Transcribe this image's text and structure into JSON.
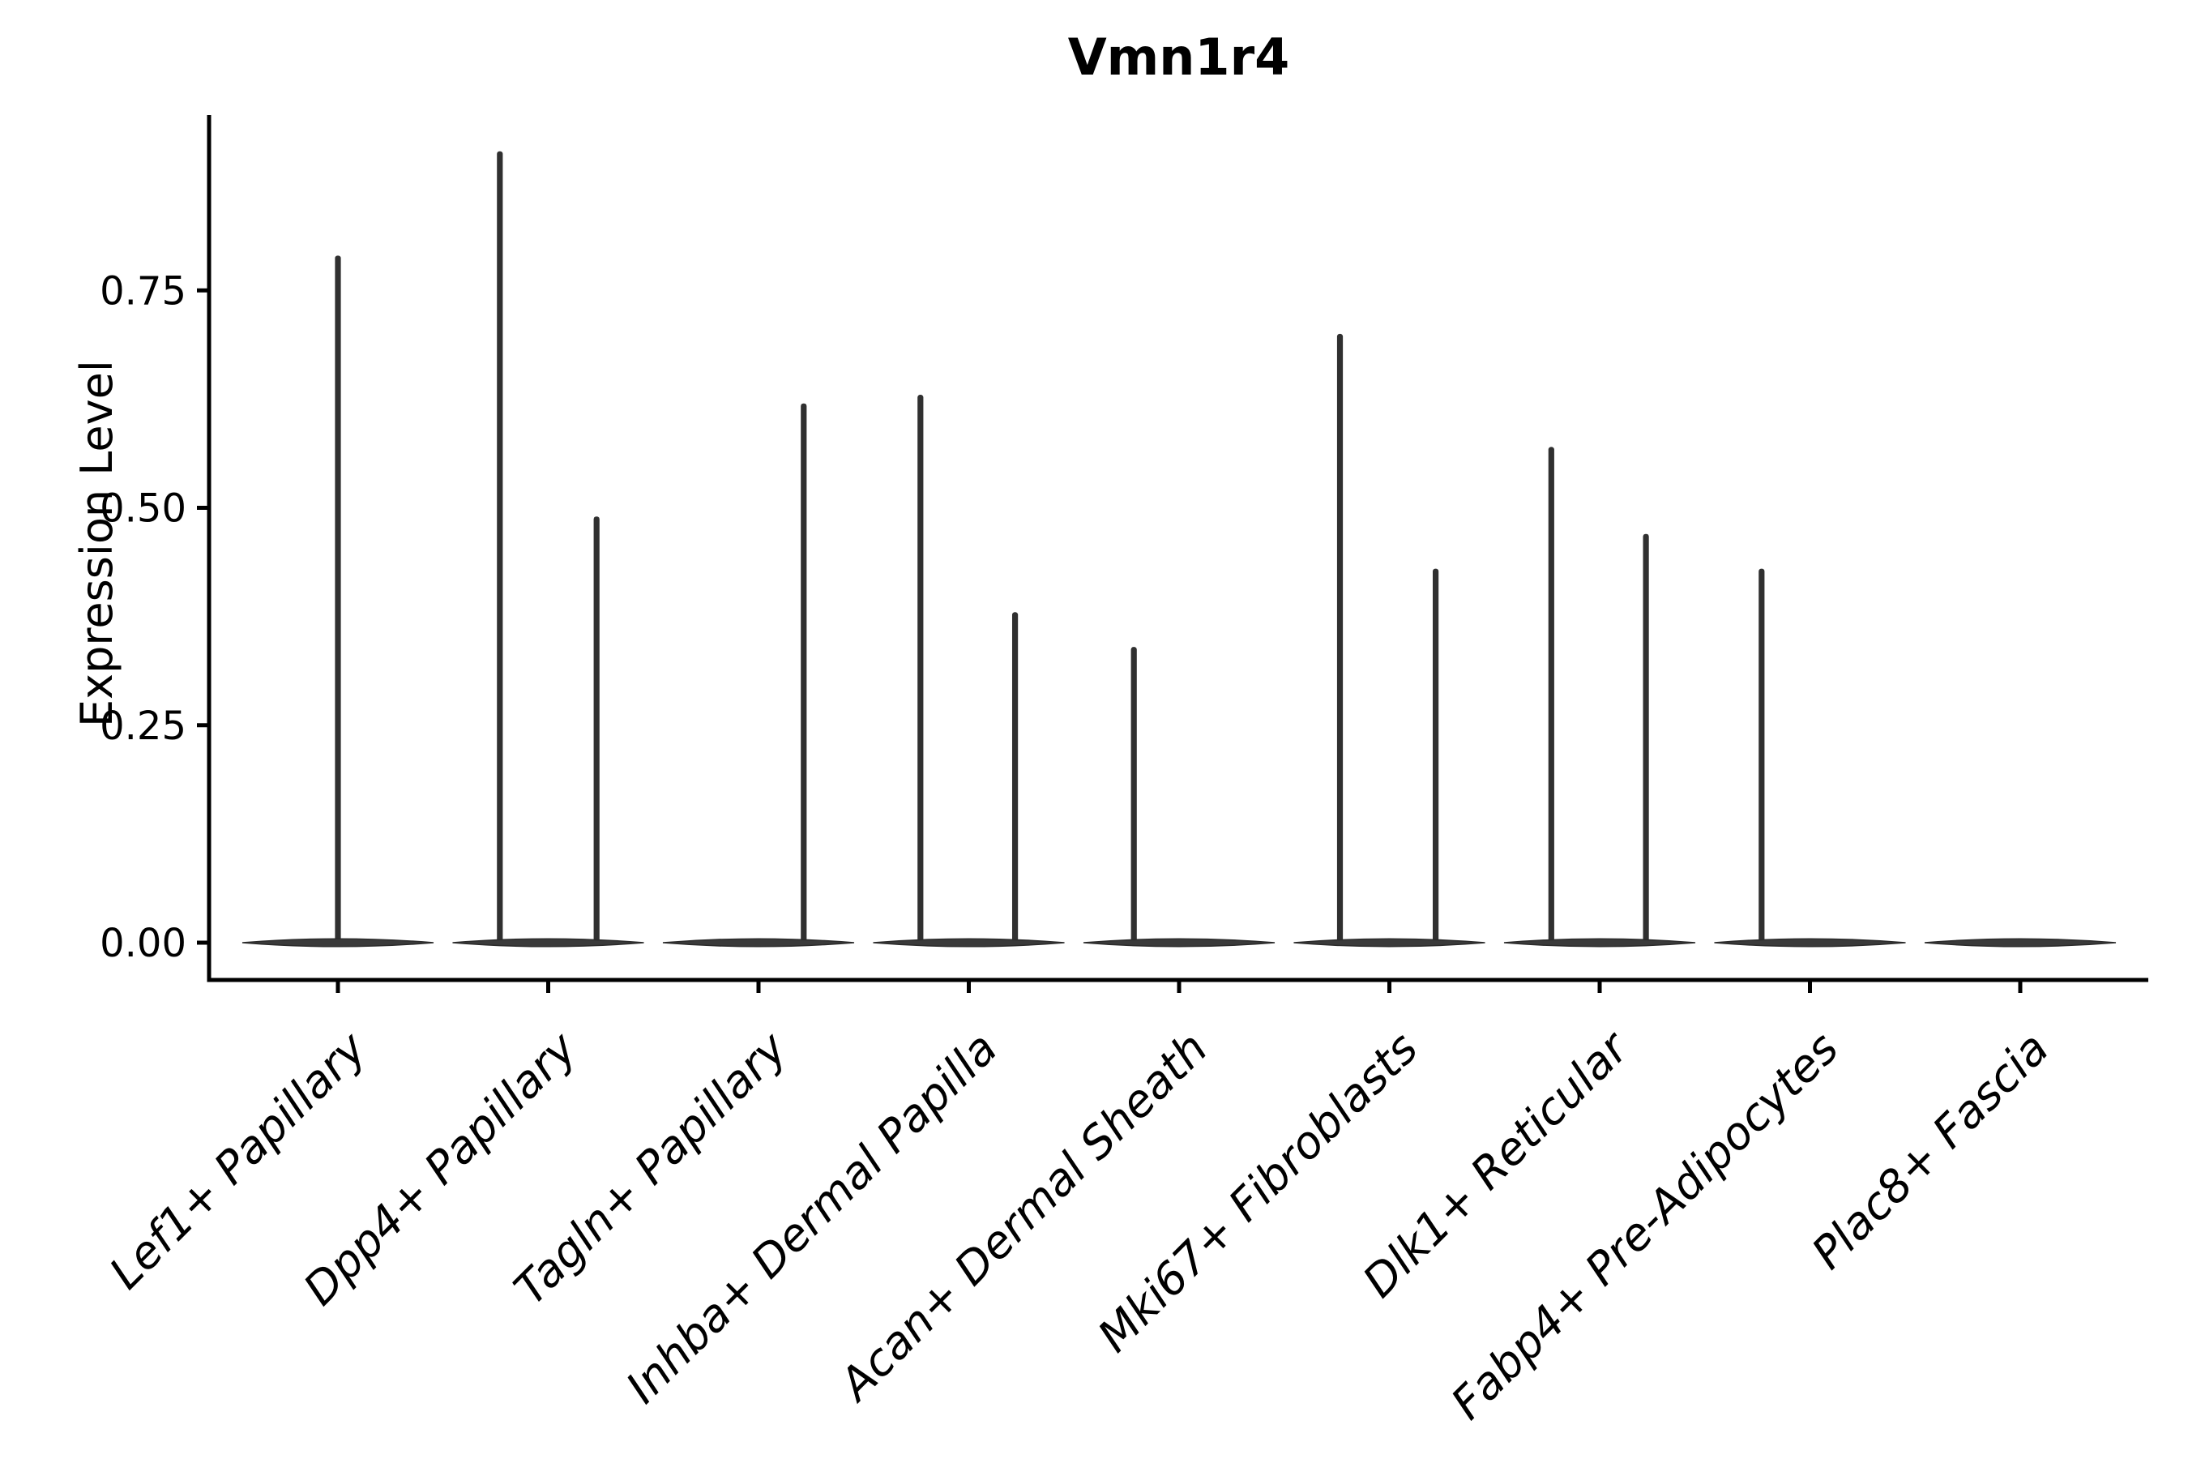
{
  "figure": {
    "background": "#ffffff"
  },
  "chart_data": {
    "type": "violin",
    "title": "Vmn1r4",
    "ylabel": "Expression Level",
    "xlabel": "",
    "categories": [
      "Lef1+ Papillary",
      "Dpp4+ Papillary",
      "Tagln+ Papillary",
      "Inhba+ Dermal Papilla",
      "Acan+ Dermal Sheath",
      "Mki67+ Fibroblasts",
      "Dlk1+ Reticular",
      "Fabp4+ Pre-Adipocytes",
      "Plac8+ Fascia"
    ],
    "yticks": [
      0,
      0.25,
      0.5,
      0.75
    ],
    "ytick_labels": [
      "0.00",
      "0.25",
      "0.50",
      "0.75"
    ],
    "ylim": [
      0,
      0.95
    ],
    "grid": false,
    "legend_position": "none",
    "description": "Violin plot of Vmn1r4 expression; each violin is a flat baseline at 0 with narrow density spikes (few expressing cells).",
    "violins": [
      {
        "category": "Lef1+ Papillary",
        "baseline_value": 0,
        "spikes": [
          {
            "offset": 0.0,
            "value": 0.79
          }
        ]
      },
      {
        "category": "Dpp4+ Papillary",
        "baseline_value": 0,
        "spikes": [
          {
            "offset": -0.23,
            "value": 0.91
          },
          {
            "offset": 0.23,
            "value": 0.49
          }
        ]
      },
      {
        "category": "Tagln+ Papillary",
        "baseline_value": 0,
        "spikes": [
          {
            "offset": 0.215,
            "value": 0.62
          }
        ]
      },
      {
        "category": "Inhba+ Dermal Papilla",
        "baseline_value": 0,
        "spikes": [
          {
            "offset": -0.23,
            "value": 0.63
          },
          {
            "offset": 0.22,
            "value": 0.38
          }
        ]
      },
      {
        "category": "Acan+ Dermal Sheath",
        "baseline_value": 0,
        "spikes": [
          {
            "offset": -0.215,
            "value": 0.34
          }
        ]
      },
      {
        "category": "Mki67+ Fibroblasts",
        "baseline_value": 0,
        "spikes": [
          {
            "offset": -0.235,
            "value": 0.7
          },
          {
            "offset": 0.22,
            "value": 0.43
          }
        ]
      },
      {
        "category": "Dlk1+ Reticular",
        "baseline_value": 0,
        "spikes": [
          {
            "offset": -0.23,
            "value": 0.57
          },
          {
            "offset": 0.22,
            "value": 0.47
          }
        ]
      },
      {
        "category": "Fabp4+ Pre-Adipocytes",
        "baseline_value": 0,
        "spikes": [
          {
            "offset": -0.23,
            "value": 0.43
          }
        ]
      },
      {
        "category": "Plac8+ Fascia",
        "baseline_value": 0,
        "spikes": []
      }
    ],
    "colors": {
      "violin_fill": "#3a3a3a",
      "spike_fill": "#303030",
      "violin_stroke": "#2b2b2b",
      "axis": "#000000",
      "text": "#000000"
    }
  }
}
